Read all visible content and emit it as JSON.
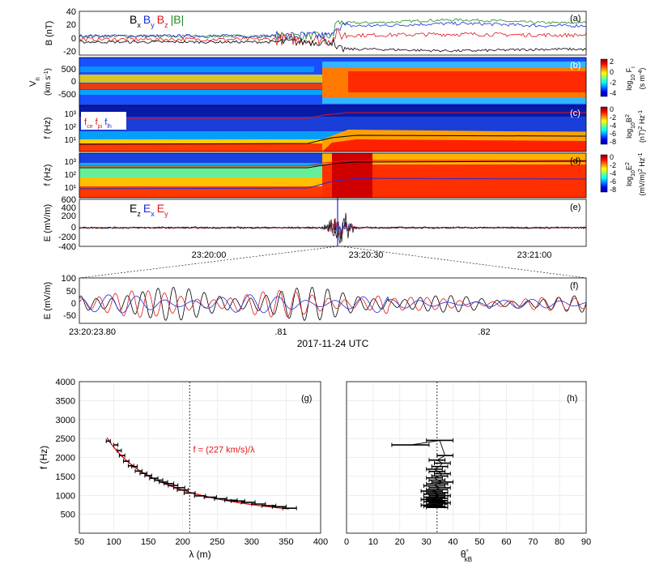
{
  "colors": {
    "bx": "#000000",
    "by": "#1f2bd6",
    "bz": "#e0161a",
    "btot": "#1f8a1f",
    "fit": "#e0161a"
  },
  "panels": {
    "a": {
      "tag": "(a)",
      "ylabel": "B (nT)",
      "yticks": [
        "40",
        "20",
        "0",
        "-20"
      ],
      "legend": [
        {
          "text": "B",
          "sub": "x",
          "color": "#000000"
        },
        {
          "text": "B",
          "sub": "y",
          "color": "#1f2bd6"
        },
        {
          "text": "B",
          "sub": "z",
          "color": "#e0161a"
        },
        {
          "text": "|B|",
          "sub": "",
          "color": "#1f8a1f"
        }
      ]
    },
    "b": {
      "tag": "(b)",
      "ylabel": "V",
      "ylabel_sub": "n",
      "ylabel2": "(km s",
      "ylabel2_sup": "-1",
      "ylabel2_end": ")",
      "yticks": [
        "500",
        "0",
        "-500"
      ],
      "cbar": {
        "ticks": [
          "2",
          "0",
          "-2",
          "-4"
        ],
        "label": "log",
        "label_sub": "10",
        "label_mid": " F",
        "label_mid_sub": "i",
        "unit": "(s m",
        "unit_sup": "-4",
        "unit_end": ")"
      }
    },
    "c": {
      "tag": "(c)",
      "ylabel": "f (Hz)",
      "yticks": [
        "10³",
        "10²",
        "10¹"
      ],
      "legend": [
        {
          "text": "f",
          "sub": "ce",
          "color": "#e0161a"
        },
        {
          "text": "f",
          "sub": "pi",
          "color": "#e0161a"
        },
        {
          "text": "f",
          "sub": "lh",
          "color": "#1f2bd6"
        }
      ],
      "cbar": {
        "ticks": [
          "0",
          "-2",
          "-4",
          "-6",
          "-8"
        ],
        "label": "log",
        "label_sub": "10",
        "label_mid": "B",
        "label_mid_sup": "2",
        "unit": "(nT)",
        "unit_sup": "2",
        "unit_end": " Hz",
        "unit_sup2": "-1"
      }
    },
    "d": {
      "tag": "(d)",
      "ylabel": "f (Hz)",
      "yticks": [
        "10³",
        "10²",
        "10¹"
      ],
      "cbar": {
        "ticks": [
          "0",
          "-2",
          "-4",
          "-6",
          "-8"
        ],
        "label": "log",
        "label_sub": "10",
        "label_mid": "E",
        "label_mid_sup": "2",
        "unit": "(mV/m)",
        "unit_sup": "2",
        "unit_end": " Hz",
        "unit_sup2": "-1"
      }
    },
    "e": {
      "tag": "(e)",
      "ylabel": "E (mV/m)",
      "yticks": [
        "600",
        "400",
        "200",
        "0",
        "-200",
        "-400"
      ],
      "legend": [
        {
          "text": "E",
          "sub": "z",
          "color": "#000000"
        },
        {
          "text": "E",
          "sub": "x",
          "color": "#1f2bd6"
        },
        {
          "text": "E",
          "sub": "y",
          "color": "#e0161a"
        }
      ],
      "xticks": [
        "23:20:00",
        "23:20:30",
        "23:21:00"
      ]
    },
    "f": {
      "tag": "(f)",
      "ylabel": "E (mV/m)",
      "yticks": [
        "100",
        "50",
        "0",
        "-50"
      ],
      "xticks": [
        "23:20:23.80",
        ".81",
        ".82"
      ],
      "xlabel": "2017-11-24 UTC"
    }
  },
  "chart_data": [
    {
      "type": "scatter",
      "tag": "(g)",
      "title": "",
      "xlabel": "λ (m)",
      "ylabel": "f (Hz)",
      "xlim": [
        50,
        400
      ],
      "ylim": [
        0,
        4000
      ],
      "xticks": [
        "50",
        "100",
        "150",
        "200",
        "250",
        "300",
        "350",
        "400"
      ],
      "yticks": [
        "4000",
        "3500",
        "3000",
        "2500",
        "2000",
        "1500",
        "1000",
        "500"
      ],
      "grid": true,
      "vline_x": 210,
      "annotation": "f = (227 km/s)/λ",
      "fit": {
        "type": "line",
        "name": "f = (227 km/s)/λ",
        "coefficient_km_per_s": 227
      },
      "series": [
        {
          "x": [
            92,
            103,
            108,
            112,
            118,
            125,
            130,
            136,
            143,
            150,
            158,
            165,
            172,
            180,
            186,
            195,
            200,
            210,
            225,
            240,
            255,
            270,
            280,
            295,
            310,
            325,
            340,
            355
          ],
          "y": [
            2430,
            2330,
            2180,
            2050,
            1900,
            1780,
            1760,
            1640,
            1580,
            1520,
            1450,
            1400,
            1350,
            1310,
            1260,
            1200,
            1140,
            1060,
            985,
            950,
            910,
            870,
            850,
            815,
            770,
            725,
            700,
            660
          ],
          "xerr": [
            3,
            3,
            3,
            4,
            4,
            4,
            4,
            5,
            5,
            5,
            6,
            6,
            6,
            7,
            7,
            8,
            8,
            8,
            8,
            9,
            9,
            9,
            10,
            10,
            10,
            10,
            10,
            10
          ]
        }
      ]
    },
    {
      "type": "scatter",
      "tag": "(h)",
      "title": "",
      "xlabel": "θ",
      "xlabel_sub": "kB",
      "xlabel_sup": "°",
      "ylabel": "",
      "xlim": [
        0,
        90
      ],
      "ylim": [
        0,
        4000
      ],
      "xticks": [
        "0",
        "10",
        "20",
        "30",
        "40",
        "50",
        "60",
        "70",
        "80",
        "90"
      ],
      "yticks": [],
      "grid": true,
      "vline_x": 34,
      "series": [
        {
          "x": [
            24,
            35,
            37,
            34,
            36,
            35,
            33,
            34,
            36,
            35,
            33,
            34,
            36,
            34,
            33,
            35,
            34,
            32,
            34,
            33,
            35,
            33,
            34,
            32,
            34,
            33,
            35,
            34,
            32,
            33,
            34
          ],
          "y": [
            2330,
            2450,
            2050,
            1930,
            1850,
            1760,
            1690,
            1630,
            1570,
            1510,
            1460,
            1400,
            1350,
            1300,
            1250,
            1200,
            1150,
            1110,
            1070,
            1030,
            990,
            950,
            920,
            890,
            860,
            830,
            800,
            770,
            740,
            710,
            680
          ],
          "xerr": [
            7,
            5,
            3,
            3,
            3,
            3,
            3,
            3,
            3,
            3,
            3,
            3,
            4,
            4,
            4,
            4,
            4,
            4,
            4,
            4,
            4,
            4,
            4,
            4,
            4,
            4,
            4,
            4,
            4,
            4,
            4
          ]
        }
      ]
    }
  ]
}
